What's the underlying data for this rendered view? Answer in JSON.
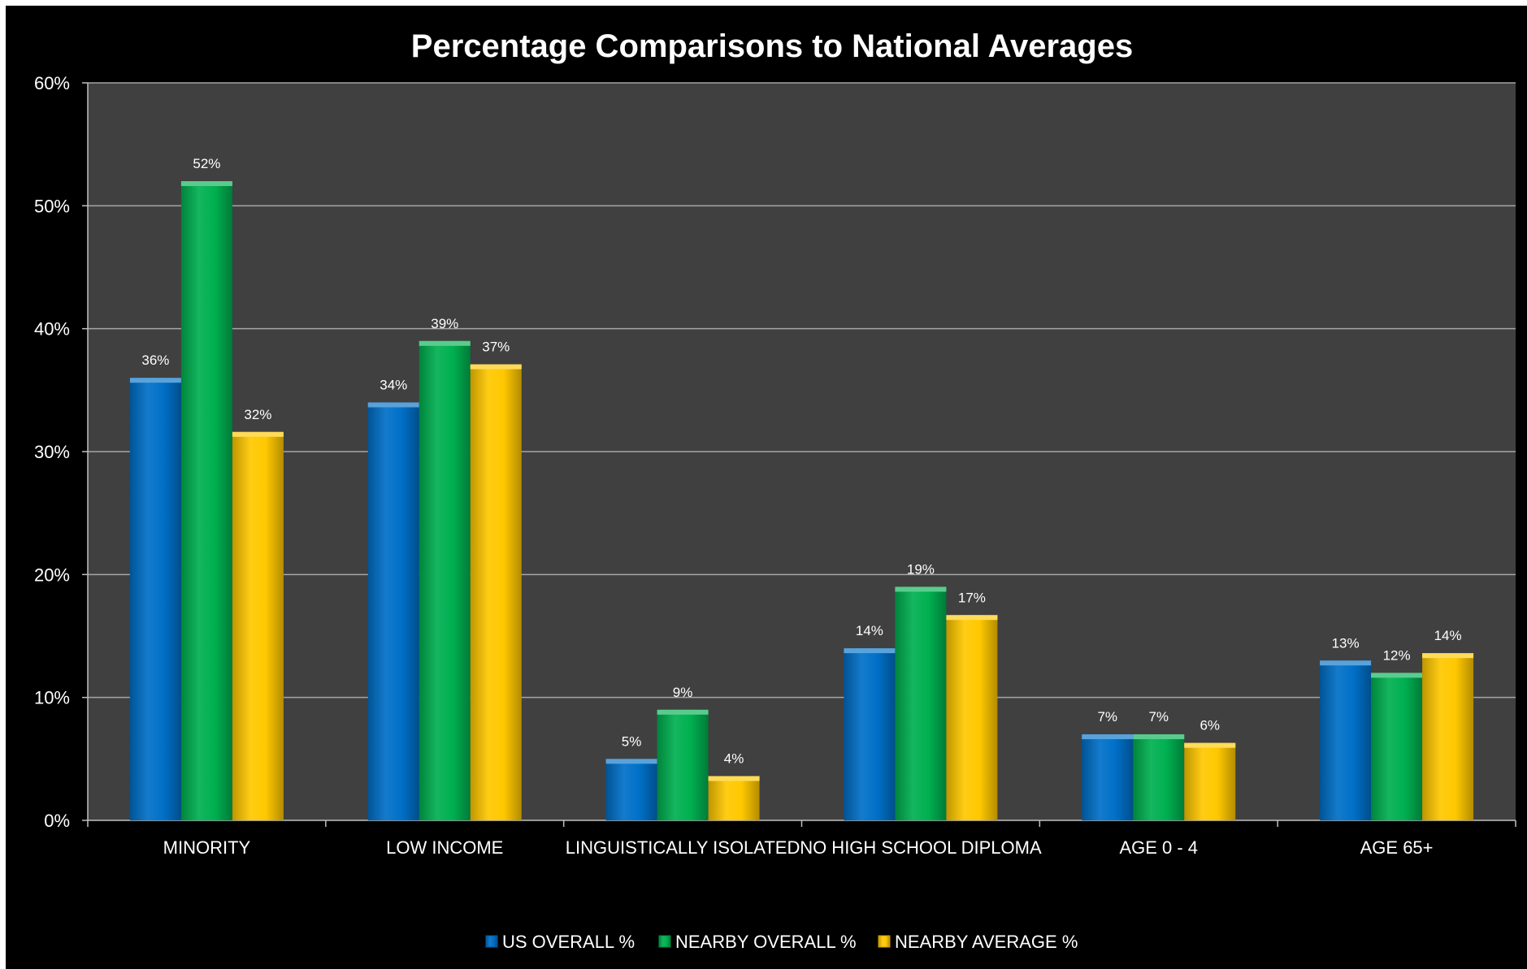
{
  "chart_data": {
    "type": "bar",
    "title": "Percentage Comparisons to National Averages",
    "xlabel": "",
    "ylabel": "",
    "categories": [
      "MINORITY",
      "LOW INCOME",
      "LINGUISTICALLY ISOLATED",
      "NO HIGH SCHOOL DIPLOMA",
      "AGE 0 - 4",
      "AGE 65+"
    ],
    "series": [
      {
        "name": "US OVERALL %",
        "color": "#0070c8",
        "values": [
          36,
          34,
          5,
          14,
          7,
          13
        ],
        "labels": [
          "36%",
          "34%",
          "5%",
          "14%",
          "7%",
          "13%"
        ]
      },
      {
        "name": "NEARBY OVERALL %",
        "color": "#00b050",
        "values": [
          52,
          39,
          9,
          19,
          7,
          12
        ],
        "labels": [
          "52%",
          "39%",
          "9%",
          "19%",
          "7%",
          "12%"
        ]
      },
      {
        "name": "NEARBY AVERAGE %",
        "color": "#ffc800",
        "values": [
          31.6,
          37.1,
          3.6,
          16.7,
          6.3,
          13.6
        ],
        "labels": [
          "32%",
          "37%",
          "4%",
          "17%",
          "6%",
          "14%"
        ]
      }
    ],
    "ylim": [
      0,
      60
    ],
    "yticks": [
      0,
      10,
      20,
      30,
      40,
      50,
      60
    ],
    "ytick_labels": [
      "0%",
      "10%",
      "20%",
      "30%",
      "40%",
      "50%",
      "60%"
    ],
    "grid": true,
    "legend_position": "bottom",
    "colors": {
      "background": "#000000",
      "plot_area": "#404040",
      "gridline": "#a6a6a6",
      "text": "#ffffff"
    }
  }
}
